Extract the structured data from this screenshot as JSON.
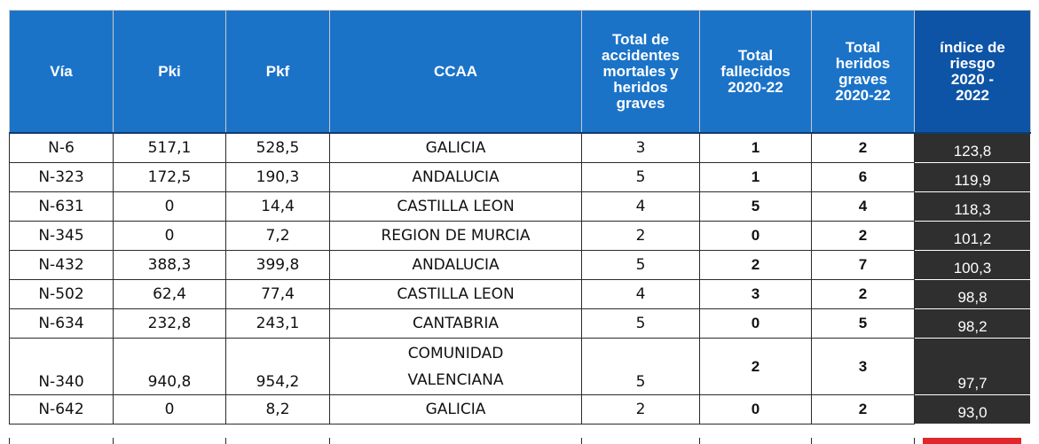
{
  "headers": {
    "via": "Vía",
    "pki": "Pki",
    "pkf": "Pkf",
    "ccaa": "CCAA",
    "total_acc": "Total de\naccidentes\nmortales y\nheridos\ngraves",
    "fallecidos": "Total\nfallecidos\n2020-22",
    "heridos": "Total\nheridos\ngraves\n2020-22",
    "indice": "índice de\nriesgo\n2020 -\n2022"
  },
  "rows": [
    {
      "via": "N-6",
      "pki": "517,1",
      "pkf": "528,5",
      "ccaa": "GALICIA",
      "total": "3",
      "fallecidos": "1",
      "heridos": "2",
      "indice": "123,8"
    },
    {
      "via": "N-323",
      "pki": "172,5",
      "pkf": "190,3",
      "ccaa": "ANDALUCIA",
      "total": "5",
      "fallecidos": "1",
      "heridos": "6",
      "indice": "119,9"
    },
    {
      "via": "N-631",
      "pki": "0",
      "pkf": "14,4",
      "ccaa": "CASTILLA LEON",
      "total": "4",
      "fallecidos": "5",
      "heridos": "4",
      "indice": "118,3"
    },
    {
      "via": "N-345",
      "pki": "0",
      "pkf": "7,2",
      "ccaa": "REGION DE MURCIA",
      "total": "2",
      "fallecidos": "0",
      "heridos": "2",
      "indice": "101,2"
    },
    {
      "via": "N-432",
      "pki": "388,3",
      "pkf": "399,8",
      "ccaa": "ANDALUCIA",
      "total": "5",
      "fallecidos": "2",
      "heridos": "7",
      "indice": "100,3"
    },
    {
      "via": "N-502",
      "pki": "62,4",
      "pkf": "77,4",
      "ccaa": "CASTILLA LEON",
      "total": "4",
      "fallecidos": "3",
      "heridos": "2",
      "indice": "98,8"
    },
    {
      "via": "N-634",
      "pki": "232,8",
      "pkf": "243,1",
      "ccaa": "CANTABRIA",
      "total": "5",
      "fallecidos": "0",
      "heridos": "5",
      "indice": "98,2"
    },
    {
      "via": "N-340",
      "pki": "940,8",
      "pkf": "954,2",
      "ccaa_line1": "COMUNIDAD",
      "ccaa_line2": "VALENCIANA",
      "total": "5",
      "fallecidos": "2",
      "heridos": "3",
      "indice": "97,7"
    },
    {
      "via": "N-642",
      "pki": "0",
      "pkf": "8,2",
      "ccaa": "GALICIA",
      "total": "2",
      "fallecidos": "0",
      "heridos": "2",
      "indice": "93,0"
    }
  ],
  "colors": {
    "header_blue": "#1b73c8",
    "index_cell": "#2f2f2f",
    "accent_red": "#e0282c"
  }
}
